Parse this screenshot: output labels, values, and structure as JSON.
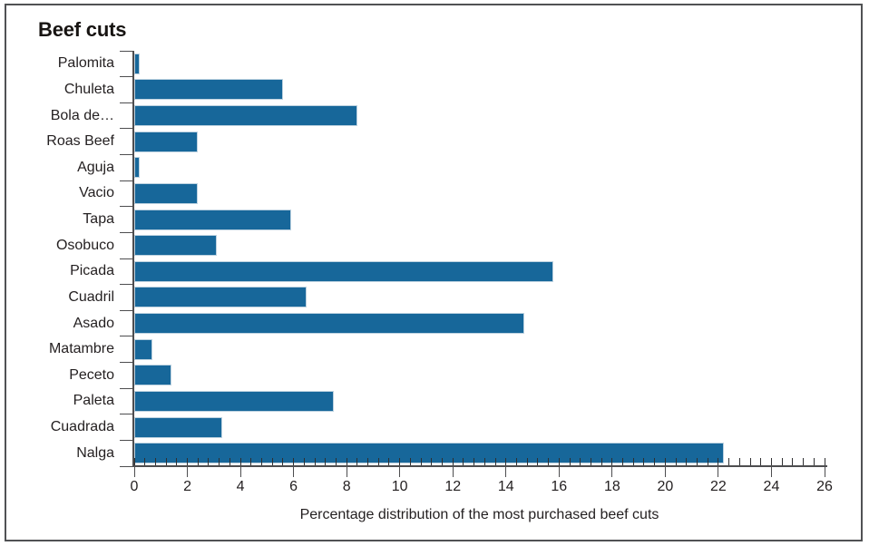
{
  "window": {
    "background": "#ffffff",
    "frame_border_color": "#515254"
  },
  "chart_data": {
    "type": "bar",
    "orientation": "horizontal",
    "title": "Beef cuts",
    "xlabel": "Percentage distribution of the most purchased beef cuts",
    "categories": [
      "Palomita",
      "Chuleta",
      "Bola de…",
      "Roas Beef",
      "Aguja",
      "Vacio",
      "Tapa",
      "Osobuco",
      "Picada",
      "Cuadril",
      "Asado",
      "Matambre",
      "Peceto",
      "Paleta",
      "Cuadrada",
      "Nalga"
    ],
    "values": [
      0.2,
      5.6,
      8.4,
      2.4,
      0.2,
      2.4,
      5.9,
      3.1,
      15.8,
      6.5,
      14.7,
      0.7,
      1.4,
      7.5,
      3.3,
      22.2
    ],
    "xlim": [
      0,
      26
    ],
    "x_major_tick_step": 2,
    "x_minor_tick_step": 0.4,
    "x_tick_labels": [
      "0",
      "2",
      "4",
      "6",
      "8",
      "10",
      "12",
      "14",
      "16",
      "18",
      "20",
      "22",
      "24",
      "26"
    ],
    "bar_color": "#17679a",
    "bar_border_color": "#bdd2e0",
    "axis_color": "#4d4d4f",
    "minor_tick_color": "#2f2f31",
    "text_color": "#231f20",
    "grid": false,
    "legend": false
  }
}
